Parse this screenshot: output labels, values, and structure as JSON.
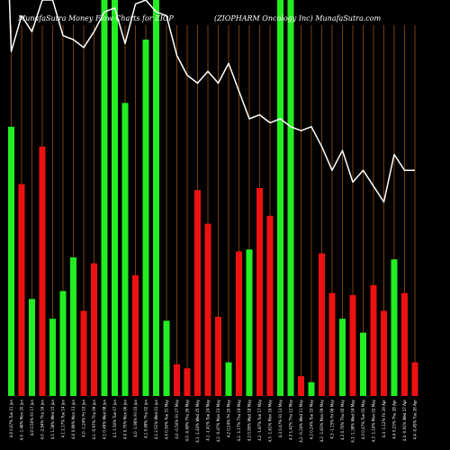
{
  "chart_data": {
    "type": "bar",
    "title": "MunafaSutra  Money Flow  Charts for ZIOP",
    "subtitle": "(ZIOPHARM Oncology Inc) MunafaSutra.com",
    "colors": {
      "up": "#22ee22",
      "down": "#ee1111",
      "line": "#ffffff",
      "grid": "#7a3e08",
      "background": "#000000"
    },
    "grid": true,
    "bar_max": 100,
    "line_max": 100,
    "bars": [
      {
        "label": "4.0 0.67% Tue 21 Jun",
        "value": 68,
        "up": true
      },
      {
        "label": "4.0 -1.48% Mon 20 Jun",
        "value": 53.5,
        "up": false
      },
      {
        "label": "4.0 0.50% Fri 17 Jun",
        "value": 24.5,
        "up": true
      },
      {
        "label": "4.0 -2.94% Thu 16 Jun",
        "value": 63,
        "up": false
      },
      {
        "label": "4.1 1.38% Wed 15 Jun",
        "value": 19.5,
        "up": true
      },
      {
        "label": "4.1 2.17% Tue 14 Jun",
        "value": 26.5,
        "up": true
      },
      {
        "label": "4.0 0.99% Mon 13 Jun",
        "value": 35,
        "up": true
      },
      {
        "label": "4.0 -1.24% Fri 10 Jun",
        "value": 21.5,
        "up": false
      },
      {
        "label": "4.1 -0.97% Thu 09 Jun",
        "value": 33.5,
        "up": false
      },
      {
        "label": "4.1 0.49% Wed 08 Jun",
        "value": 100,
        "up": true
      },
      {
        "label": "4.1 1.50% Tue 07 Jun",
        "value": 100,
        "up": true
      },
      {
        "label": "4.0 0.75% Mon 06 Jun",
        "value": 74,
        "up": true
      },
      {
        "label": "4.0 -1.96% Fri 03 Jun",
        "value": 30.5,
        "up": false
      },
      {
        "label": "4.1 0.98% Thu 02 Jun",
        "value": 90,
        "up": true
      },
      {
        "label": "4.1 2.51% Wed 01 Jun",
        "value": 100,
        "up": true
      },
      {
        "label": "4.0 0.50% Tue 31 May",
        "value": 19,
        "up": true
      },
      {
        "label": "4.0 -0.50% Fri 27 May",
        "value": 8,
        "up": false
      },
      {
        "label": "4.0 -0.49% Thu 26 May",
        "value": 7,
        "up": false
      },
      {
        "label": "4.1 -1.43% Wed 25 May",
        "value": 52,
        "up": false
      },
      {
        "label": "4.1 -1.41% Tue 24 May",
        "value": 43.5,
        "up": false
      },
      {
        "label": "4.2 -0.47% Mon 23 May",
        "value": 20,
        "up": false
      },
      {
        "label": "4.2 0.24% Fri 20 May",
        "value": 8.5,
        "up": true
      },
      {
        "label": "4.2 -1.17% Thu 19 May",
        "value": 36.5,
        "up": false
      },
      {
        "label": "4.2 0.95% Wed 18 May",
        "value": 37,
        "up": true
      },
      {
        "label": "4.2 -1.87% Tue 17 May",
        "value": 52.5,
        "up": false
      },
      {
        "label": "4.3 -1.61% Mon 16 May",
        "value": 45.5,
        "up": false
      },
      {
        "label": "4.3 0.47% Fri 13 May",
        "value": 100,
        "up": true
      },
      {
        "label": "4.3 1.42% Thu 12 May",
        "value": 100,
        "up": true
      },
      {
        "label": "4.2 -0.24% Wed 11 May",
        "value": 5,
        "up": false
      },
      {
        "label": "4.2 0.24% Tue 10 May",
        "value": 3.5,
        "up": true
      },
      {
        "label": "4.2 -1.63% Mon 09 May",
        "value": 36,
        "up": false
      },
      {
        "label": "4.3 -1.15% Fri 06 May",
        "value": 26,
        "up": false
      },
      {
        "label": "4.3 0.70% Thu 05 May",
        "value": 19.5,
        "up": true
      },
      {
        "label": "4.3 -1.38% Wed 04 May",
        "value": 25.5,
        "up": false
      },
      {
        "label": "4.3 0.47% Tue 03 May",
        "value": 16,
        "up": true
      },
      {
        "label": "4.3 -1.14% Mon 02 May",
        "value": 28,
        "up": false
      },
      {
        "label": "4.4 -1.12% Fri 29 Apr",
        "value": 21.5,
        "up": false
      },
      {
        "label": "4.4 0.23% Thu 28 Apr",
        "value": 34.5,
        "up": true
      },
      {
        "label": "4.4 -0.91% Wed 27 Apr",
        "value": 26,
        "up": false
      },
      {
        "label": "4.4 -0.45% Tue 26 Apr",
        "value": 8.5,
        "up": false
      }
    ],
    "line": [
      100,
      87,
      96,
      92,
      100,
      100,
      91,
      90,
      88,
      92,
      97,
      98,
      89,
      99,
      100,
      97,
      96,
      86,
      81,
      79,
      82,
      79,
      84,
      77,
      70,
      71,
      69,
      70,
      68,
      67,
      68,
      63,
      57,
      62,
      54,
      57,
      53,
      49,
      61,
      57,
      57
    ]
  }
}
